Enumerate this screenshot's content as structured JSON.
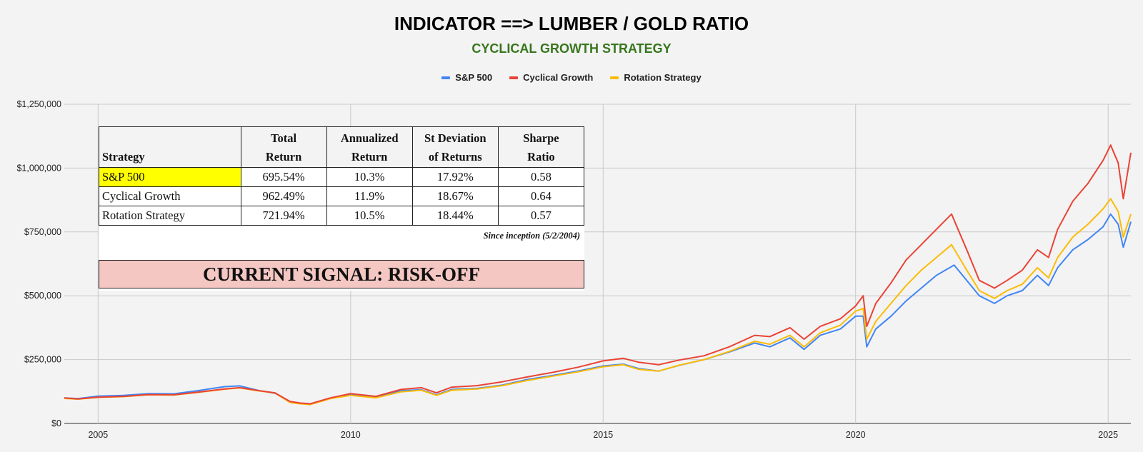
{
  "header": {
    "title": "INDICATOR ==> LUMBER / GOLD RATIO",
    "subtitle": "CYCLICAL GROWTH STRATEGY",
    "subtitle_color": "#38761d"
  },
  "legend": [
    {
      "name": "S&P 500",
      "color": "#4285f4"
    },
    {
      "name": "Cyclical Growth",
      "color": "#ea4335"
    },
    {
      "name": "Rotation Strategy",
      "color": "#fbbc04"
    }
  ],
  "table": {
    "headers": [
      {
        "line1": "",
        "line2": "Strategy"
      },
      {
        "line1": "Total",
        "line2": "Return"
      },
      {
        "line1": "Annualized",
        "line2": "Return"
      },
      {
        "line1": "St Deviation",
        "line2": "of Returns"
      },
      {
        "line1": "Sharpe",
        "line2": "Ratio"
      }
    ],
    "rows": [
      {
        "name": "S&P 500",
        "total_return": "695.54%",
        "annualized_return": "10.3%",
        "st_dev": "17.92%",
        "sharpe": "0.58",
        "highlight": "#ffff00"
      },
      {
        "name": "Cyclical Growth",
        "total_return": "962.49%",
        "annualized_return": "11.9%",
        "st_dev": "18.67%",
        "sharpe": "0.64",
        "highlight": ""
      },
      {
        "name": "Rotation Strategy",
        "total_return": "721.94%",
        "annualized_return": "10.5%",
        "st_dev": "18.44%",
        "sharpe": "0.57",
        "highlight": ""
      }
    ],
    "footnote": "Since inception (5/2/2004)"
  },
  "signal": {
    "text": "CURRENT SIGNAL: RISK-OFF",
    "background": "#f4c7c3"
  },
  "chart_data": {
    "type": "line",
    "title": "",
    "xlabel": "",
    "ylabel": "",
    "xlim": [
      2004.33,
      2025.45
    ],
    "ylim": [
      0,
      1250000
    ],
    "x_ticks": [
      2005,
      2010,
      2015,
      2020,
      2025
    ],
    "x_tick_labels": [
      "2005",
      "2010",
      "2015",
      "2020",
      "2025"
    ],
    "y_ticks": [
      0,
      250000,
      500000,
      750000,
      1000000,
      1250000
    ],
    "y_tick_labels": [
      "$0",
      "$250,000",
      "$500,000",
      "$750,000",
      "$1,000,000",
      "$1,250,000"
    ],
    "grid": true,
    "legend_position": "top",
    "series": [
      {
        "name": "S&P 500",
        "color": "#4285f4",
        "x": [
          2004.33,
          2004.6,
          2005.0,
          2005.5,
          2006.0,
          2006.5,
          2007.0,
          2007.5,
          2007.8,
          2008.2,
          2008.5,
          2008.8,
          2009.0,
          2009.2,
          2009.6,
          2010.0,
          2010.5,
          2011.0,
          2011.4,
          2011.7,
          2012.0,
          2012.5,
          2013.0,
          2013.5,
          2014.0,
          2014.5,
          2015.0,
          2015.4,
          2015.7,
          2016.1,
          2016.5,
          2017.0,
          2017.5,
          2018.0,
          2018.3,
          2018.7,
          2018.98,
          2019.3,
          2019.7,
          2020.0,
          2020.15,
          2020.22,
          2020.4,
          2020.7,
          2021.0,
          2021.3,
          2021.6,
          2021.95,
          2022.2,
          2022.45,
          2022.75,
          2023.0,
          2023.3,
          2023.6,
          2023.82,
          2024.0,
          2024.3,
          2024.6,
          2024.9,
          2025.05,
          2025.2,
          2025.3,
          2025.45
        ],
        "values": [
          100000,
          97000,
          107000,
          110000,
          117000,
          116000,
          129000,
          144000,
          147000,
          128000,
          118000,
          85000,
          78000,
          75000,
          98000,
          112000,
          102000,
          128000,
          132000,
          112000,
          133000,
          137000,
          150000,
          172000,
          188000,
          205000,
          225000,
          232000,
          215000,
          205000,
          227000,
          250000,
          280000,
          315000,
          300000,
          335000,
          290000,
          345000,
          370000,
          420000,
          420000,
          300000,
          370000,
          420000,
          480000,
          530000,
          580000,
          620000,
          560000,
          500000,
          470000,
          500000,
          520000,
          580000,
          540000,
          610000,
          680000,
          720000,
          770000,
          820000,
          780000,
          690000,
          790000
        ]
      },
      {
        "name": "Cyclical Growth",
        "color": "#ea4335",
        "x": [
          2004.33,
          2004.6,
          2005.0,
          2005.5,
          2006.0,
          2006.5,
          2007.0,
          2007.5,
          2007.8,
          2008.2,
          2008.5,
          2008.8,
          2009.0,
          2009.2,
          2009.6,
          2010.0,
          2010.5,
          2011.0,
          2011.4,
          2011.7,
          2012.0,
          2012.5,
          2013.0,
          2013.5,
          2014.0,
          2014.5,
          2015.0,
          2015.4,
          2015.7,
          2016.1,
          2016.5,
          2017.0,
          2017.5,
          2018.0,
          2018.3,
          2018.7,
          2018.98,
          2019.3,
          2019.7,
          2020.0,
          2020.15,
          2020.22,
          2020.4,
          2020.7,
          2021.0,
          2021.3,
          2021.6,
          2021.9,
          2022.2,
          2022.45,
          2022.75,
          2023.0,
          2023.3,
          2023.6,
          2023.82,
          2024.0,
          2024.3,
          2024.6,
          2024.9,
          2025.05,
          2025.2,
          2025.3,
          2025.45
        ],
        "values": [
          100000,
          96000,
          103000,
          106000,
          113000,
          112000,
          123000,
          135000,
          140000,
          128000,
          120000,
          86000,
          80000,
          77000,
          100000,
          117000,
          106000,
          133000,
          140000,
          120000,
          142000,
          148000,
          163000,
          182000,
          200000,
          220000,
          245000,
          255000,
          240000,
          230000,
          248000,
          265000,
          300000,
          345000,
          340000,
          375000,
          330000,
          380000,
          410000,
          460000,
          500000,
          380000,
          470000,
          550000,
          640000,
          700000,
          760000,
          820000,
          680000,
          560000,
          530000,
          560000,
          600000,
          680000,
          650000,
          760000,
          870000,
          940000,
          1030000,
          1090000,
          1020000,
          880000,
          1060000
        ]
      },
      {
        "name": "Rotation Strategy",
        "color": "#fbbc04",
        "x": [
          2004.33,
          2004.6,
          2005.0,
          2005.5,
          2006.0,
          2006.5,
          2007.0,
          2007.5,
          2007.8,
          2008.2,
          2008.5,
          2008.8,
          2009.0,
          2009.2,
          2009.6,
          2010.0,
          2010.5,
          2011.0,
          2011.4,
          2011.7,
          2012.0,
          2012.5,
          2013.0,
          2013.5,
          2014.0,
          2014.5,
          2015.0,
          2015.4,
          2015.7,
          2016.1,
          2016.5,
          2017.0,
          2017.5,
          2018.0,
          2018.3,
          2018.7,
          2018.98,
          2019.3,
          2019.7,
          2020.0,
          2020.15,
          2020.22,
          2020.4,
          2020.7,
          2021.0,
          2021.3,
          2021.6,
          2021.9,
          2022.2,
          2022.45,
          2022.75,
          2023.0,
          2023.3,
          2023.6,
          2023.82,
          2024.0,
          2024.3,
          2024.6,
          2024.9,
          2025.05,
          2025.2,
          2025.3,
          2025.45
        ],
        "values": [
          98000,
          95000,
          102000,
          105000,
          112000,
          111000,
          122000,
          134000,
          139000,
          127000,
          119000,
          82000,
          77000,
          74000,
          97000,
          110000,
          100000,
          124000,
          130000,
          110000,
          130000,
          135000,
          148000,
          168000,
          185000,
          202000,
          222000,
          230000,
          212000,
          205000,
          228000,
          250000,
          282000,
          322000,
          310000,
          345000,
          300000,
          355000,
          385000,
          440000,
          450000,
          330000,
          400000,
          470000,
          540000,
          600000,
          650000,
          700000,
          600000,
          520000,
          490000,
          520000,
          545000,
          610000,
          570000,
          650000,
          730000,
          780000,
          840000,
          880000,
          830000,
          730000,
          820000
        ]
      }
    ]
  }
}
